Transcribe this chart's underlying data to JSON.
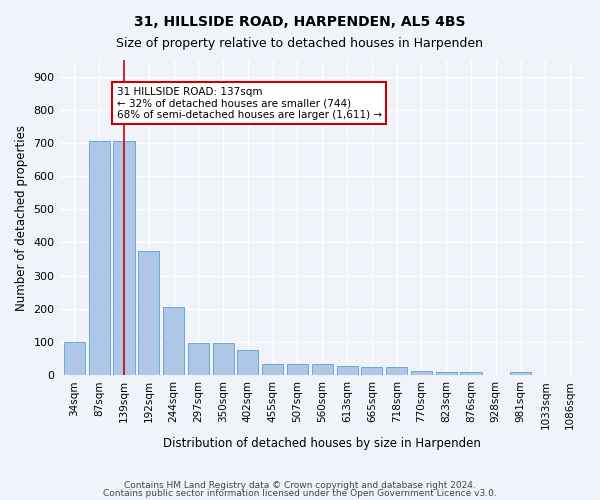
{
  "title_line1": "31, HILLSIDE ROAD, HARPENDEN, AL5 4BS",
  "title_line2": "Size of property relative to detached houses in Harpenden",
  "xlabel": "Distribution of detached houses by size in Harpenden",
  "ylabel": "Number of detached properties",
  "categories": [
    "34sqm",
    "87sqm",
    "139sqm",
    "192sqm",
    "244sqm",
    "297sqm",
    "350sqm",
    "402sqm",
    "455sqm",
    "507sqm",
    "560sqm",
    "613sqm",
    "665sqm",
    "718sqm",
    "770sqm",
    "823sqm",
    "876sqm",
    "928sqm",
    "981sqm",
    "1033sqm",
    "1086sqm"
  ],
  "values": [
    100,
    705,
    705,
    375,
    205,
    98,
    98,
    75,
    35,
    35,
    35,
    28,
    25,
    25,
    12,
    10,
    10,
    0,
    10,
    0,
    0
  ],
  "bar_color": "#aec6e8",
  "bar_edge_color": "#5a9fd4",
  "highlight_bar_index": 2,
  "highlight_line_color": "#cc0000",
  "annotation_text": "31 HILLSIDE ROAD: 137sqm\n← 32% of detached houses are smaller (744)\n68% of semi-detached houses are larger (1,611) →",
  "annotation_box_color": "#ffffff",
  "annotation_box_edge_color": "#cc0000",
  "ylim": [
    0,
    950
  ],
  "yticks": [
    0,
    100,
    200,
    300,
    400,
    500,
    600,
    700,
    800,
    900
  ],
  "background_color": "#f0f4fa",
  "grid_color": "#ffffff",
  "footer_line1": "Contains HM Land Registry data © Crown copyright and database right 2024.",
  "footer_line2": "Contains public sector information licensed under the Open Government Licence v3.0."
}
